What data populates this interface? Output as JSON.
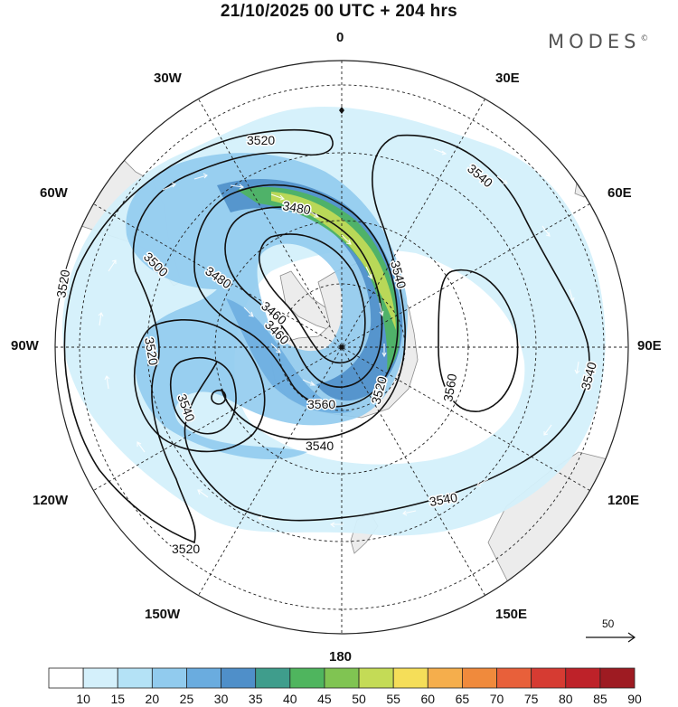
{
  "header": {
    "title": "21/10/2025  00 UTC  + 204 hrs",
    "brand": "MODES",
    "brand_mark": "©"
  },
  "map": {
    "projection": "polar stereographic (Southern Hemisphere)",
    "longitude_labels": {
      "lon_0": "0",
      "lon_30e": "30E",
      "lon_60e": "60E",
      "lon_90e": "90E",
      "lon_120e": "120E",
      "lon_150e": "150E",
      "lon_180": "180",
      "lon_150w": "150W",
      "lon_120w": "120W",
      "lon_90w": "90W",
      "lon_60w": "60W",
      "lon_30w": "30W"
    },
    "contour_labels": {
      "c1": "3520",
      "c2": "3540",
      "c3": "3480",
      "c4": "3540",
      "c5": "3500",
      "c6": "3480",
      "c7": "3460",
      "c8": "3520",
      "c9": "3460",
      "c10": "3560",
      "c11": "3520",
      "c12": "3540",
      "c13": "3560",
      "c14": "3540",
      "c15": "3540",
      "c16": "3540",
      "c17": "3520",
      "c18": "3520"
    },
    "reference_vector": "50"
  },
  "colorbar": {
    "labels": [
      "10",
      "15",
      "20",
      "25",
      "30",
      "35",
      "40",
      "45",
      "50",
      "55",
      "60",
      "65",
      "70",
      "75",
      "80",
      "85",
      "90"
    ],
    "colors": [
      "#ffffff",
      "#d4f0fb",
      "#b4e2f6",
      "#91cbee",
      "#6aacdf",
      "#4f8fc9",
      "#3f9d8c",
      "#4fb55e",
      "#80c452",
      "#c4db56",
      "#f5de59",
      "#f5ae4c",
      "#f08a3c",
      "#e8603a",
      "#d63b32",
      "#be2229",
      "#9e1b22"
    ]
  },
  "colors": {
    "land": "#ececec",
    "coast": "#888888",
    "grid": "#222222",
    "contour": "#111111"
  }
}
